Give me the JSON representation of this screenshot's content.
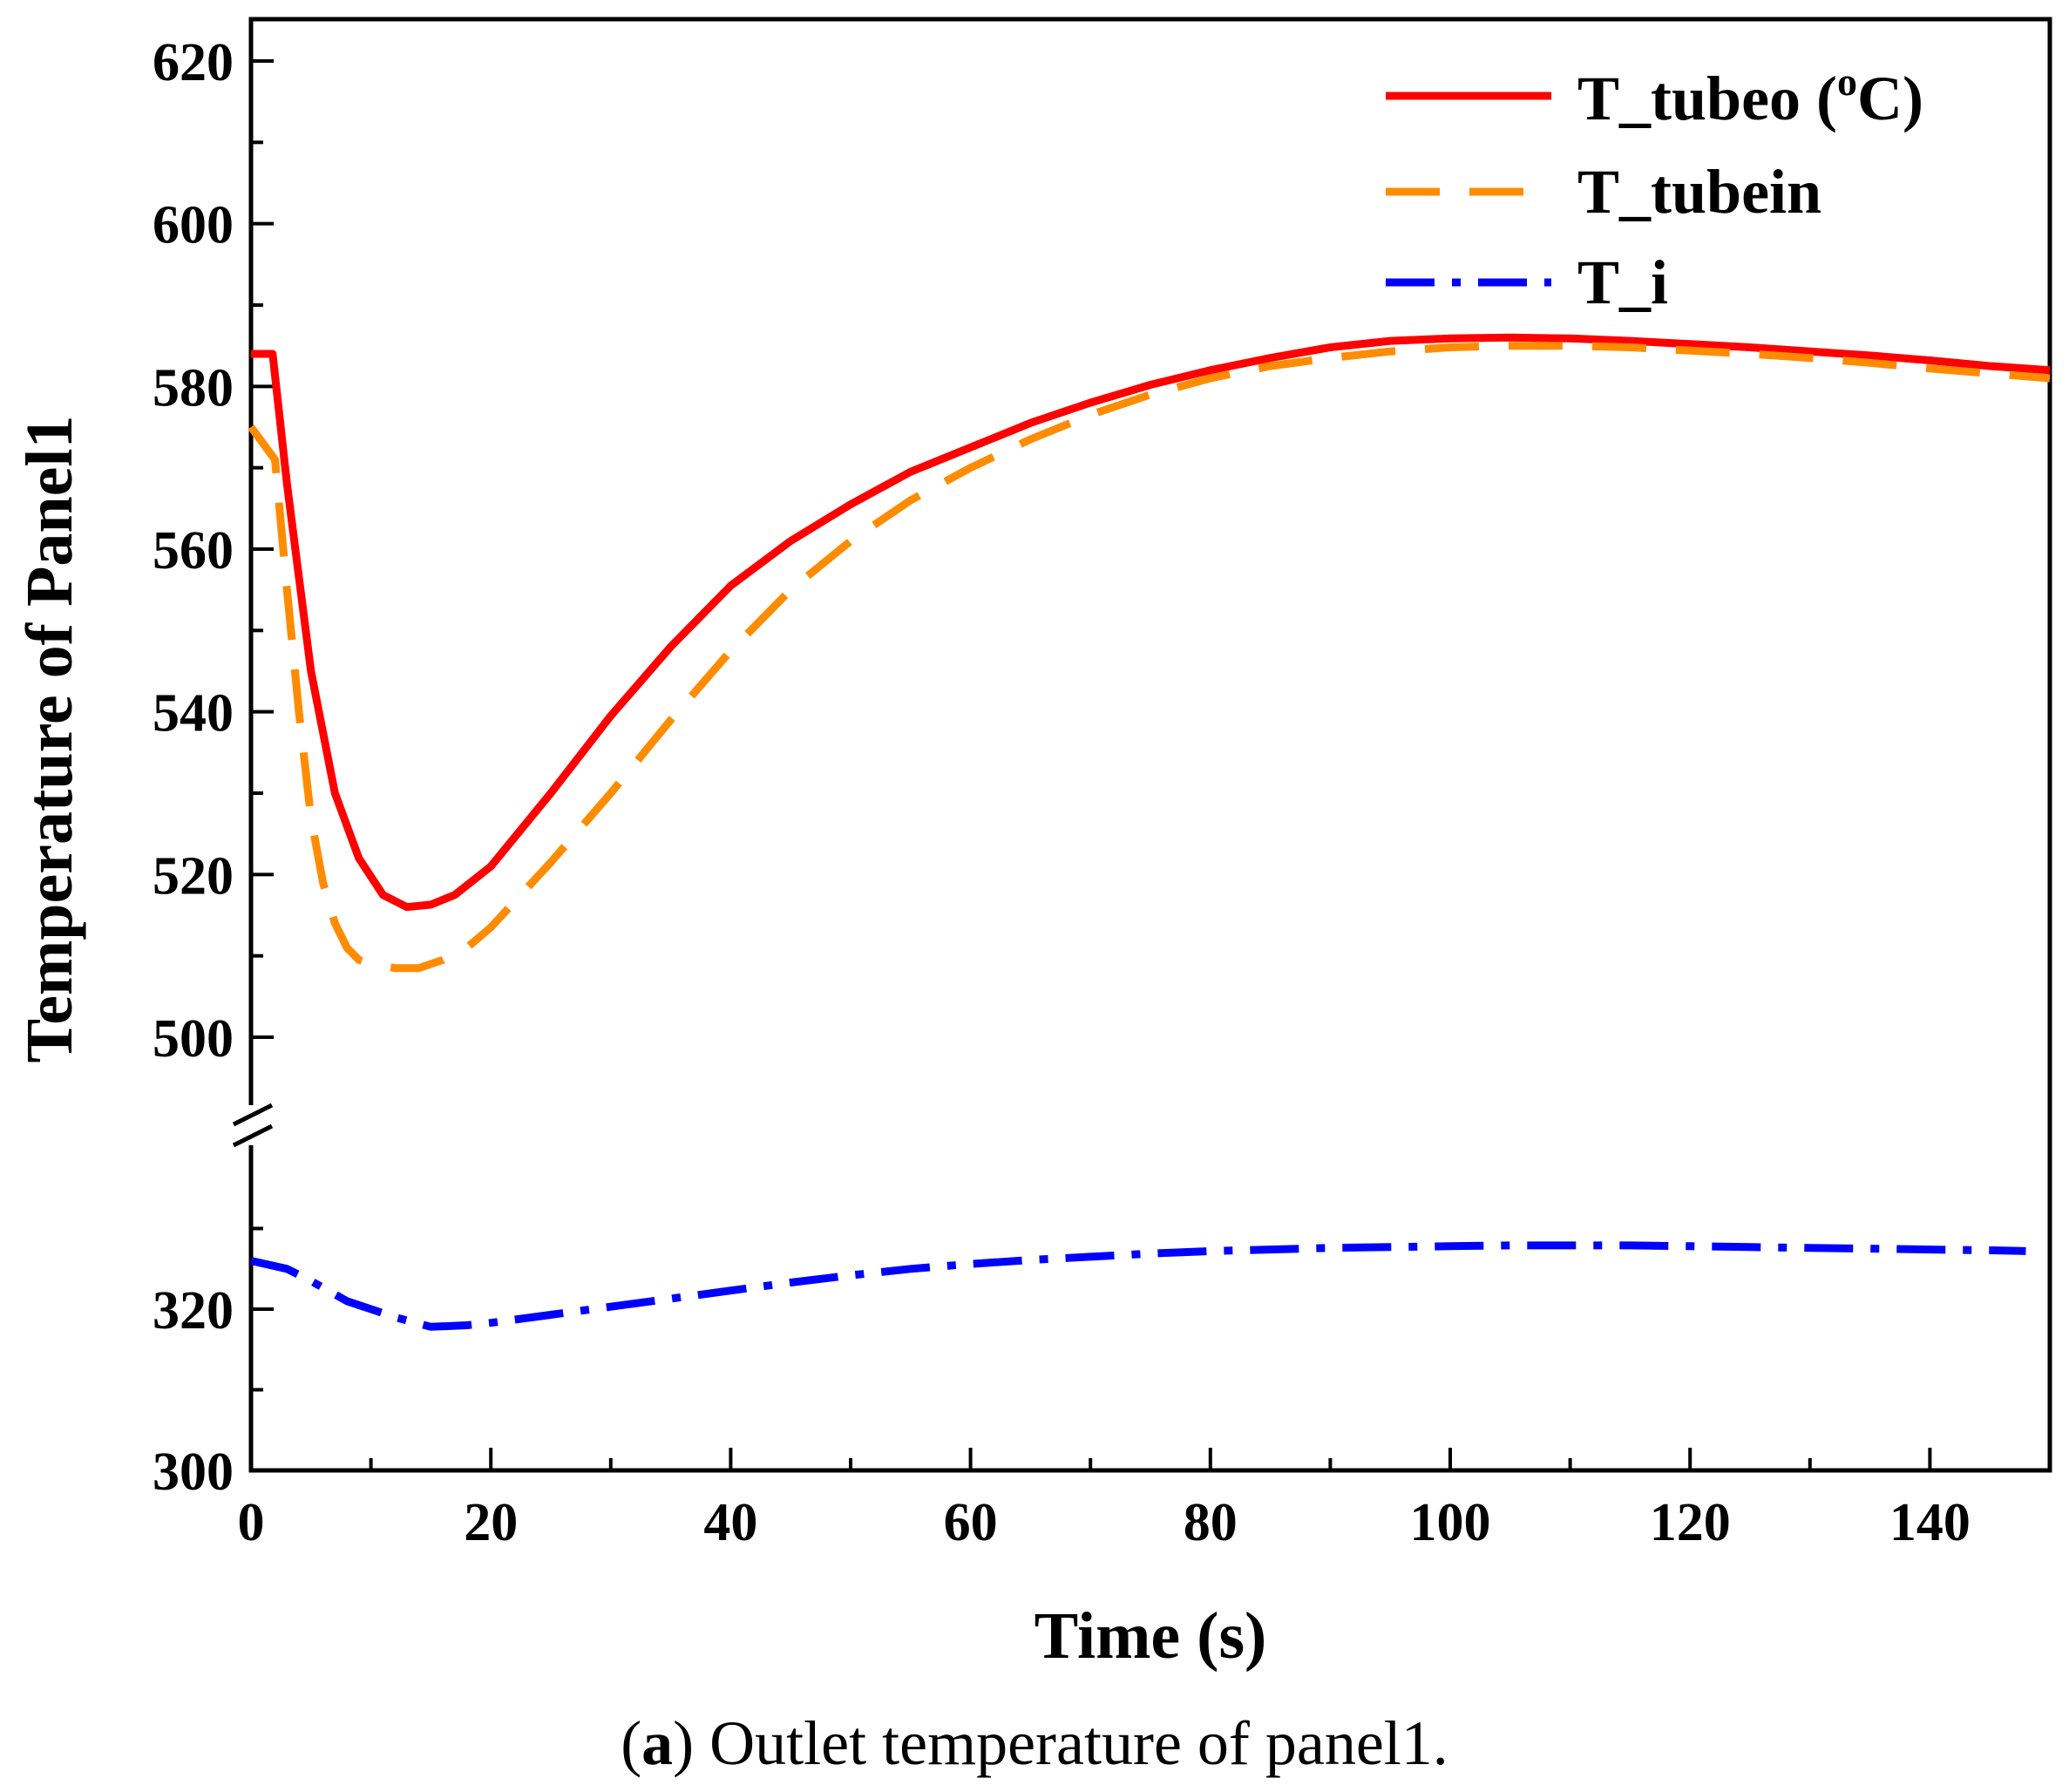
{
  "chart_data": {
    "type": "line",
    "xlabel": "Time (s)",
    "ylabel": "Temperature of Panel1",
    "xlim": [
      0,
      150
    ],
    "x_ticks": [
      0,
      20,
      40,
      60,
      80,
      100,
      120,
      140
    ],
    "x_tick_labels": [
      "0",
      "20",
      "40",
      "60",
      "80",
      "100",
      "120",
      "140"
    ],
    "y_axis_break": {
      "upper_range": [
        490,
        625
      ],
      "lower_range": [
        300,
        335
      ],
      "upper_ticks": [
        500,
        520,
        540,
        560,
        580,
        600,
        620
      ],
      "lower_ticks": [
        300,
        320
      ]
    },
    "y_tick_labels_upper": [
      "500",
      "520",
      "540",
      "560",
      "580",
      "600",
      "620"
    ],
    "y_tick_labels_lower": [
      "300",
      "320"
    ],
    "legend_position": "top-right",
    "series": [
      {
        "name": "T_tubeo (°C)",
        "label_main": "T_tubeo (",
        "label_sup": "o",
        "label_end": "C)",
        "color": "#ff0000",
        "style": "solid",
        "x": [
          0,
          1.8,
          3,
          5,
          7,
          9,
          11,
          13,
          15,
          17,
          20,
          25,
          30,
          35,
          40,
          45,
          50,
          55,
          60,
          65,
          70,
          75,
          80,
          85,
          90,
          95,
          100,
          105,
          110,
          115,
          120,
          125,
          130,
          135,
          140,
          145,
          150
        ],
        "y": [
          584,
          584,
          568,
          545,
          530,
          522,
          517.5,
          516,
          516.3,
          517.5,
          521,
          530,
          539.5,
          548,
          555.5,
          561,
          565.5,
          569.5,
          572.5,
          575.5,
          578,
          580.2,
          582,
          583.5,
          584.8,
          585.6,
          585.9,
          586,
          585.9,
          585.6,
          585.2,
          584.8,
          584.3,
          583.8,
          583.2,
          582.5,
          582
        ]
      },
      {
        "name": "T_tubein",
        "label_main": "T_tubein",
        "color": "#ff8c00",
        "style": "dashed",
        "x": [
          0,
          2,
          3,
          4,
          5,
          6,
          7,
          8,
          9,
          10,
          12,
          14,
          16,
          18,
          20,
          25,
          30,
          35,
          40,
          45,
          50,
          55,
          60,
          65,
          70,
          75,
          80,
          85,
          90,
          95,
          100,
          105,
          110,
          115,
          120,
          125,
          130,
          135,
          140,
          145,
          150
        ],
        "y": [
          575,
          571,
          555,
          540,
          527,
          519,
          514,
          511,
          509.5,
          509,
          508.5,
          508.5,
          509.5,
          511,
          513.5,
          521.5,
          530,
          539,
          547.5,
          555,
          561,
          566,
          570,
          573.5,
          576.5,
          579,
          581,
          582.5,
          583.5,
          584.3,
          584.8,
          585,
          585,
          584.8,
          584.4,
          584,
          583.5,
          582.9,
          582.2,
          581.6,
          581
        ]
      },
      {
        "name": "T_i",
        "label_main": "T_i",
        "color": "#0000ff",
        "style": "dashdot",
        "x": [
          0,
          3,
          5,
          8,
          10,
          12,
          15,
          18,
          20,
          25,
          30,
          35,
          40,
          45,
          50,
          55,
          60,
          65,
          70,
          75,
          80,
          85,
          90,
          95,
          100,
          105,
          110,
          115,
          120,
          125,
          130,
          135,
          140,
          145,
          148
        ],
        "y": [
          326,
          325,
          323.5,
          321,
          320,
          319,
          317.8,
          318,
          318.3,
          319.3,
          320.3,
          321.3,
          322.3,
          323.3,
          324.2,
          325,
          325.6,
          326.1,
          326.5,
          326.9,
          327.2,
          327.4,
          327.6,
          327.7,
          327.8,
          327.9,
          327.9,
          327.9,
          327.8,
          327.7,
          327.6,
          327.5,
          327.4,
          327.3,
          327.2
        ]
      }
    ]
  },
  "caption": {
    "label": "a",
    "open": "(",
    "close": ")",
    "text": " Outlet temperature of panel1."
  }
}
